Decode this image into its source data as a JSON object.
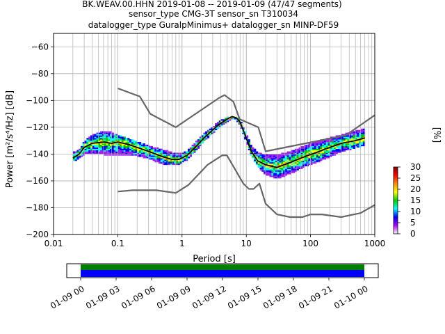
{
  "chart_data": [
    {
      "type": "heatmap",
      "title_lines": [
        "BK.WEAV.00.HHN   2019-01-08 -- 2019-01-09  (47/47 segments)",
        "sensor_type CMG-3T sensor_sn T310034",
        "datalogger_type GuralpMinimus+ datalogger_sn MINP-DF59"
      ],
      "xlabel": "Period [s]",
      "ylabel": "Power [m²/s⁴/Hz] [dB]",
      "xscale": "log",
      "xlim": [
        0.01,
        1000
      ],
      "ylim": [
        -200,
        -50
      ],
      "x_ticks": [
        {
          "value": 0.01,
          "label": "0.01"
        },
        {
          "value": 0.1,
          "label": "0.1"
        },
        {
          "value": 1,
          "label": "1"
        },
        {
          "value": 10,
          "label": "10"
        },
        {
          "value": 100,
          "label": "100"
        },
        {
          "value": 1000,
          "label": "1000"
        }
      ],
      "y_ticks": [
        {
          "value": -60,
          "label": "−60"
        },
        {
          "value": -80,
          "label": "−80"
        },
        {
          "value": -100,
          "label": "−100"
        },
        {
          "value": -120,
          "label": "−120"
        },
        {
          "value": -140,
          "label": "−140"
        },
        {
          "value": -160,
          "label": "−160"
        },
        {
          "value": -180,
          "label": "−180"
        },
        {
          "value": -200,
          "label": "−200"
        }
      ],
      "grid": true,
      "noise_model_high": {
        "x": [
          0.1,
          0.22,
          0.32,
          0.8,
          3.8,
          4.6,
          6.3,
          7.9,
          15.4,
          20,
          354,
          1000
        ],
        "y": [
          -91,
          -97,
          -110,
          -120,
          -98,
          -96,
          -101,
          -114,
          -120,
          -138,
          -126,
          -111
        ]
      },
      "noise_model_low": {
        "x": [
          0.1,
          0.17,
          0.4,
          0.8,
          1.26,
          2.5,
          4.2,
          5.0,
          9.0,
          11.0,
          13.0,
          16.0,
          20.0,
          30.0,
          48,
          75,
          100,
          150,
          300,
          600,
          1000
        ],
        "y": [
          -168,
          -167,
          -167,
          -169,
          -163,
          -148,
          -141,
          -141,
          -162,
          -166,
          -166,
          -162,
          -177,
          -185,
          -187,
          -187,
          -185,
          -185,
          -187,
          -184,
          -178
        ]
      },
      "mode_curve": {
        "x": [
          0.02,
          0.025,
          0.03,
          0.04,
          0.06,
          0.08,
          0.1,
          0.15,
          0.2,
          0.3,
          0.5,
          0.7,
          0.9,
          1.2,
          1.6,
          2.2,
          3,
          4,
          5,
          6,
          7,
          8,
          10,
          12,
          15,
          20,
          30,
          50,
          80,
          120,
          200,
          300,
          500,
          700
        ],
        "y": [
          -143,
          -140,
          -135,
          -132,
          -131,
          -132,
          -131,
          -133,
          -135,
          -138,
          -142,
          -144,
          -144,
          -141,
          -135,
          -128,
          -122,
          -117,
          -114,
          -112,
          -113,
          -116,
          -128,
          -138,
          -145,
          -148,
          -150,
          -146,
          -142,
          -139,
          -135,
          -132,
          -130,
          -128
        ]
      },
      "spread_upper": [
        -138,
        -136,
        -130,
        -125,
        -122,
        -123,
        -125,
        -128,
        -130,
        -133,
        -136,
        -138,
        -139,
        -137,
        -131,
        -124,
        -119,
        -114,
        -112,
        -111,
        -112,
        -114,
        -124,
        -133,
        -138,
        -140,
        -140,
        -137,
        -133,
        -130,
        -127,
        -125,
        -122,
        -120
      ],
      "spread_lower": [
        -146,
        -144,
        -141,
        -140,
        -141,
        -141,
        -141,
        -141,
        -142,
        -144,
        -148,
        -149,
        -148,
        -145,
        -139,
        -131,
        -125,
        -120,
        -117,
        -114,
        -115,
        -119,
        -132,
        -142,
        -150,
        -156,
        -159,
        -155,
        -150,
        -147,
        -143,
        -139,
        -136,
        -134
      ],
      "colorbar": {
        "label": "[%]",
        "range": [
          0,
          30
        ],
        "ticks": [
          "0",
          "5",
          "10",
          "15",
          "20",
          "25",
          "30"
        ],
        "colormap": [
          "#ffffff",
          "#a020f0",
          "#0000ff",
          "#00ffff",
          "#00c800",
          "#ffff00",
          "#ff8c00",
          "#ff0000",
          "#8b0000"
        ]
      }
    },
    {
      "type": "timeline",
      "x_ticks": [
        "01-09 00",
        "01-09 03",
        "01-09 06",
        "01-09 09",
        "01-09 12",
        "01-09 15",
        "01-09 18",
        "01-09 21",
        "01-10 00"
      ],
      "segments_color": "#008000",
      "used_color": "#0000ff",
      "coverage_start_hour": 0,
      "coverage_end_hour": 24
    }
  ],
  "colors": {
    "noise_model": "#666666",
    "mode": "#000000",
    "grid": "#b0b0b0"
  }
}
